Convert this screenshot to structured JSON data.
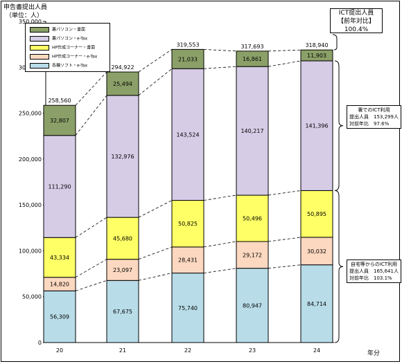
{
  "header": {
    "title": "申告書提出人員",
    "unit": "（単位：人）",
    "xaxis_unit": "年分"
  },
  "ict_box": {
    "line1": "ICT提出人員",
    "line2": "【前年対比】",
    "line3": "100.4%"
  },
  "note_upper": {
    "line1": "署でのICT利用",
    "line2": "提出人員　153,299人",
    "line3": "対前年比　97.6%"
  },
  "note_lower": {
    "line1": "自宅等からのICT利用",
    "line2": "提出人員　165,641人",
    "line3": "対前年比　103.1%"
  },
  "colors": {
    "s1": "#b8dce8",
    "s2": "#fcd8c0",
    "s3": "#ffff66",
    "s4": "#d6cce6",
    "s5": "#8ba068"
  },
  "chart_data": {
    "type": "bar",
    "stacked": true,
    "categories": [
      "20",
      "21",
      "22",
      "23",
      "24"
    ],
    "series": [
      {
        "name": "各種ソフト・e-Tax",
        "values": [
          56309,
          67675,
          75740,
          80947,
          84714
        ]
      },
      {
        "name": "HP作成コーナー・e-Tax",
        "values": [
          14820,
          23097,
          28431,
          29172,
          30032
        ]
      },
      {
        "name": "HP作成コーナー・書面",
        "values": [
          43334,
          45680,
          50825,
          50496,
          50895
        ]
      },
      {
        "name": "署パソコン・e-Tax",
        "values": [
          111290,
          132976,
          143524,
          140217,
          141396
        ]
      },
      {
        "name": "署パソコン・書面",
        "values": [
          32807,
          25494,
          21033,
          16861,
          11903
        ]
      }
    ],
    "totals": [
      "258,560",
      "294,922",
      "319,553",
      "317,693",
      "318,940"
    ],
    "value_labels": [
      [
        "56,309",
        "67,675",
        "75,740",
        "80,947",
        "84,714"
      ],
      [
        "14,820",
        "23,097",
        "28,431",
        "29,172",
        "30,032"
      ],
      [
        "43,334",
        "45,680",
        "50,825",
        "50,496",
        "50,895"
      ],
      [
        "111,290",
        "132,976",
        "143,524",
        "140,217",
        "141,396"
      ],
      [
        "32,807",
        "25,494",
        "21,033",
        "16,861",
        "11,903"
      ]
    ],
    "y_ticks": [
      "0",
      "50,000",
      "100,000",
      "150,000",
      "200,000",
      "250,000",
      "300,000",
      "350,000"
    ],
    "ylim": [
      0,
      350000
    ],
    "legend_position": "top-left",
    "legend_order": [
      4,
      3,
      2,
      1,
      0
    ]
  }
}
